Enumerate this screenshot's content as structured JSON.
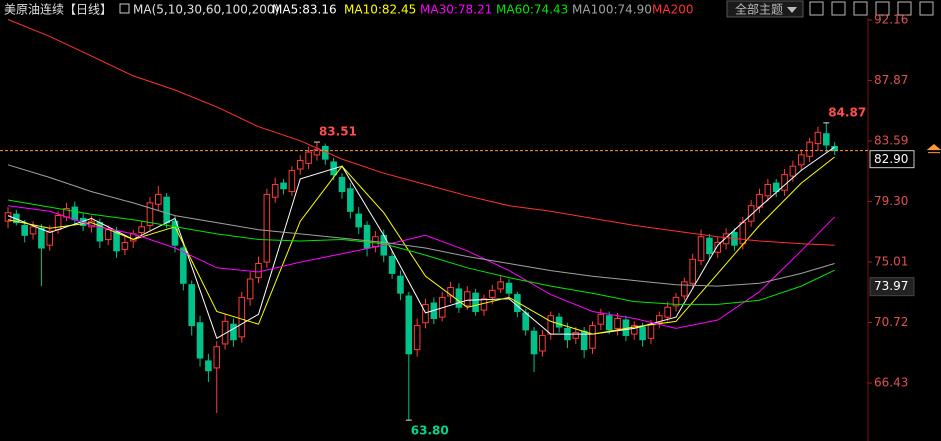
{
  "chart_data": {
    "type": "candlestick",
    "title": "美原油连续",
    "period": "【日线】",
    "indicator": "MA(5,10,30,60,100,200)",
    "theme_menu": "全部主题",
    "up_color": "#ff3b3b",
    "down_color": "#00c28a",
    "open": [
      77.9,
      78.4,
      77.6,
      77.0,
      77.4,
      76.2,
      77.3,
      78.2,
      78.9,
      78.1,
      77.5,
      77.8,
      76.6,
      77.2,
      75.9,
      76.5,
      77.1,
      77.6,
      79.1,
      79.6,
      77.9,
      76.0,
      73.4,
      70.7,
      68.0,
      67.5,
      69.2,
      70.6,
      69.7,
      72.4,
      73.9,
      75.0,
      79.6,
      80.6,
      80.0,
      81.6,
      82.0,
      82.6,
      83.2,
      82.1,
      81.0,
      80.2,
      78.4,
      77.6,
      76.1,
      76.9,
      75.4,
      74.0,
      72.6,
      68.8,
      70.7,
      72.1,
      71.1,
      72.6,
      73.1,
      71.9,
      72.8,
      71.6,
      72.5,
      73.1,
      73.5,
      72.7,
      71.4,
      70.1,
      68.7,
      69.9,
      71.1,
      70.3,
      69.6,
      70.1,
      68.9,
      70.6,
      71.2,
      70.3,
      70.9,
      69.9,
      70.4,
      69.6,
      70.7,
      71.1,
      71.9,
      72.6,
      73.5,
      75.1,
      76.7,
      75.7,
      76.3,
      77.1,
      76.3,
      77.9,
      78.9,
      79.7,
      80.6,
      80.1,
      81.1,
      81.9,
      82.5,
      83.4,
      84.1,
      83.2
    ],
    "high": [
      78.9,
      78.7,
      78.0,
      77.9,
      77.7,
      77.6,
      78.6,
      79.2,
      79.3,
      78.5,
      78.3,
      78.1,
      77.6,
      77.5,
      76.8,
      77.3,
      77.9,
      79.6,
      80.4,
      79.9,
      78.3,
      76.4,
      73.7,
      71.2,
      68.5,
      69.4,
      71.3,
      71.0,
      72.9,
      74.3,
      75.4,
      80.2,
      81.0,
      80.9,
      81.8,
      82.6,
      83.2,
      83.51,
      83.4,
      82.4,
      81.3,
      80.6,
      78.9,
      77.9,
      77.2,
      77.3,
      75.8,
      74.4,
      72.9,
      71.0,
      72.4,
      72.5,
      72.9,
      73.6,
      73.5,
      73.3,
      73.1,
      72.7,
      73.4,
      74.0,
      73.8,
      72.9,
      71.7,
      70.4,
      70.2,
      71.5,
      71.4,
      70.7,
      70.4,
      70.4,
      70.8,
      71.7,
      71.5,
      71.4,
      71.2,
      70.8,
      70.7,
      70.9,
      71.5,
      72.2,
      72.8,
      73.9,
      75.6,
      77.3,
      77.0,
      76.8,
      77.4,
      77.4,
      78.2,
      79.4,
      80.2,
      80.9,
      80.9,
      81.6,
      82.2,
      83.0,
      83.8,
      84.6,
      84.87,
      83.5
    ],
    "low": [
      77.4,
      77.6,
      76.4,
      76.6,
      73.3,
      75.8,
      77.0,
      77.9,
      77.6,
      77.2,
      77.1,
      76.0,
      76.2,
      75.3,
      75.5,
      76.0,
      76.8,
      77.2,
      78.7,
      77.4,
      75.7,
      73.0,
      69.8,
      67.6,
      66.5,
      64.3,
      68.8,
      69.0,
      69.3,
      71.9,
      73.5,
      74.6,
      79.2,
      79.8,
      79.7,
      81.2,
      81.6,
      82.2,
      81.9,
      80.8,
      79.5,
      78.1,
      77.0,
      75.4,
      75.7,
      75.0,
      73.8,
      72.3,
      63.8,
      68.3,
      70.3,
      70.6,
      70.8,
      72.1,
      71.4,
      71.6,
      71.2,
      71.2,
      72.0,
      72.8,
      72.4,
      71.1,
      69.8,
      67.2,
      68.3,
      69.5,
      70.0,
      68.9,
      69.2,
      68.2,
      68.5,
      70.2,
      69.9,
      69.8,
      69.4,
      69.5,
      69.0,
      69.2,
      70.3,
      70.8,
      71.5,
      72.3,
      73.1,
      74.8,
      75.2,
      75.3,
      75.9,
      75.8,
      75.9,
      77.5,
      78.5,
      79.3,
      79.6,
      79.7,
      80.7,
      81.5,
      82.1,
      82.9,
      82.8,
      82.6
    ],
    "close": [
      78.5,
      77.8,
      76.9,
      77.5,
      76.0,
      77.2,
      78.3,
      78.8,
      78.0,
      77.6,
      77.9,
      76.5,
      77.3,
      75.8,
      76.4,
      77.0,
      77.5,
      79.2,
      79.8,
      77.8,
      76.2,
      73.5,
      70.5,
      68.2,
      67.3,
      69.0,
      70.8,
      69.5,
      72.5,
      73.8,
      74.9,
      79.8,
      80.5,
      80.2,
      81.5,
      82.2,
      82.8,
      83.0,
      82.3,
      81.2,
      80.0,
      78.6,
      77.5,
      76.0,
      76.8,
      75.5,
      74.2,
      72.8,
      68.5,
      70.5,
      72.0,
      71.0,
      72.5,
      73.2,
      71.8,
      72.9,
      71.5,
      72.4,
      73.0,
      73.6,
      72.8,
      71.5,
      70.2,
      68.5,
      69.8,
      71.2,
      70.4,
      69.5,
      70.0,
      68.8,
      70.5,
      71.3,
      70.2,
      71.0,
      69.8,
      70.5,
      69.5,
      70.6,
      71.2,
      71.8,
      72.5,
      73.6,
      75.2,
      76.8,
      75.6,
      76.4,
      77.0,
      76.2,
      77.8,
      79.0,
      79.8,
      80.5,
      80.0,
      81.2,
      81.8,
      82.6,
      83.5,
      84.2,
      83.3,
      82.9
    ],
    "series": [
      {
        "name": "MA5:83.16",
        "color": "#ffffff",
        "x": [
          0,
          5,
          10,
          15,
          20,
          25,
          30,
          35,
          40,
          45,
          50,
          55,
          60,
          65,
          70,
          75,
          80,
          85,
          90,
          95,
          99
        ],
        "values": [
          78.3,
          77.1,
          78.1,
          76.6,
          78.1,
          69.6,
          71.3,
          80.9,
          81.8,
          76.9,
          71.4,
          72.3,
          72.4,
          69.9,
          69.9,
          70.3,
          71.1,
          76.2,
          78.9,
          81.5,
          83.16
        ]
      },
      {
        "name": "MA10:82.45",
        "color": "#ffff00",
        "x": [
          0,
          5,
          10,
          15,
          20,
          25,
          30,
          35,
          40,
          45,
          50,
          55,
          60,
          65,
          70,
          75,
          80,
          85,
          90,
          95,
          99
        ],
        "values": [
          78.0,
          77.4,
          77.8,
          76.6,
          77.5,
          71.5,
          70.6,
          77.9,
          81.8,
          78.5,
          74.0,
          71.8,
          72.5,
          70.8,
          69.9,
          70.4,
          70.8,
          74.2,
          77.6,
          80.6,
          82.45
        ]
      },
      {
        "name": "MA30:78.21",
        "color": "#ff00ff",
        "x": [
          0,
          5,
          10,
          15,
          20,
          25,
          30,
          35,
          40,
          45,
          50,
          55,
          60,
          65,
          70,
          75,
          80,
          85,
          90,
          95,
          99
        ],
        "values": [
          79.0,
          78.6,
          77.6,
          77.0,
          76.0,
          74.6,
          74.3,
          75.0,
          75.6,
          76.2,
          76.9,
          75.8,
          74.4,
          72.7,
          71.5,
          71.0,
          70.3,
          70.9,
          72.9,
          75.8,
          78.21
        ]
      },
      {
        "name": "MA60:74.43",
        "color": "#00e600",
        "x": [
          0,
          5,
          10,
          15,
          20,
          25,
          30,
          35,
          40,
          45,
          50,
          55,
          60,
          65,
          70,
          75,
          80,
          85,
          90,
          95,
          99
        ],
        "values": [
          79.4,
          78.9,
          78.4,
          78.0,
          77.5,
          77.0,
          76.6,
          76.5,
          76.6,
          76.3,
          75.5,
          74.6,
          73.9,
          73.3,
          72.8,
          72.2,
          72.0,
          72.0,
          72.3,
          73.3,
          74.43
        ]
      },
      {
        "name": "MA100:74.90",
        "color": "#a0a0a0",
        "x": [
          0,
          5,
          10,
          15,
          20,
          25,
          30,
          35,
          40,
          45,
          50,
          55,
          60,
          65,
          70,
          75,
          80,
          85,
          90,
          95,
          99
        ],
        "values": [
          81.9,
          81.0,
          80.0,
          79.2,
          78.3,
          77.8,
          77.3,
          77.0,
          76.7,
          76.4,
          76.0,
          75.4,
          74.9,
          74.4,
          74.0,
          73.7,
          73.4,
          73.3,
          73.5,
          74.2,
          74.9
        ]
      },
      {
        "name": "MA200",
        "color": "#ff3030",
        "x": [
          0,
          5,
          10,
          15,
          20,
          25,
          30,
          35,
          40,
          45,
          50,
          55,
          60,
          65,
          70,
          75,
          80,
          85,
          90,
          95,
          99
        ],
        "values": [
          92.2,
          91.0,
          89.6,
          88.2,
          87.2,
          86.0,
          84.6,
          83.6,
          82.3,
          81.3,
          80.5,
          79.7,
          79.0,
          78.6,
          78.1,
          77.6,
          77.2,
          76.8,
          76.5,
          76.3,
          76.2
        ]
      }
    ],
    "annotations": [
      {
        "label": "83.51",
        "field": "high",
        "index": 37
      },
      {
        "label": "84.87",
        "field": "high",
        "index": 98
      },
      {
        "label": "63.80",
        "field": "low",
        "index": 48
      }
    ],
    "last_price": {
      "value": 82.9,
      "label": "82.90",
      "color": "#ff9933"
    },
    "marker_price": 73.97,
    "ylim": [
      62.32,
      93.58
    ],
    "yticks": [
      {
        "value": 92.16,
        "label": "92.16"
      },
      {
        "value": 87.87,
        "label": "87.87"
      },
      {
        "value": 83.59,
        "label": "83.59"
      },
      {
        "value": 79.3,
        "label": "79.30"
      },
      {
        "value": 75.01,
        "label": "75.01"
      },
      {
        "value": 70.72,
        "label": "70.72"
      },
      {
        "value": 66.43,
        "label": "66.43"
      }
    ],
    "grid": false
  }
}
